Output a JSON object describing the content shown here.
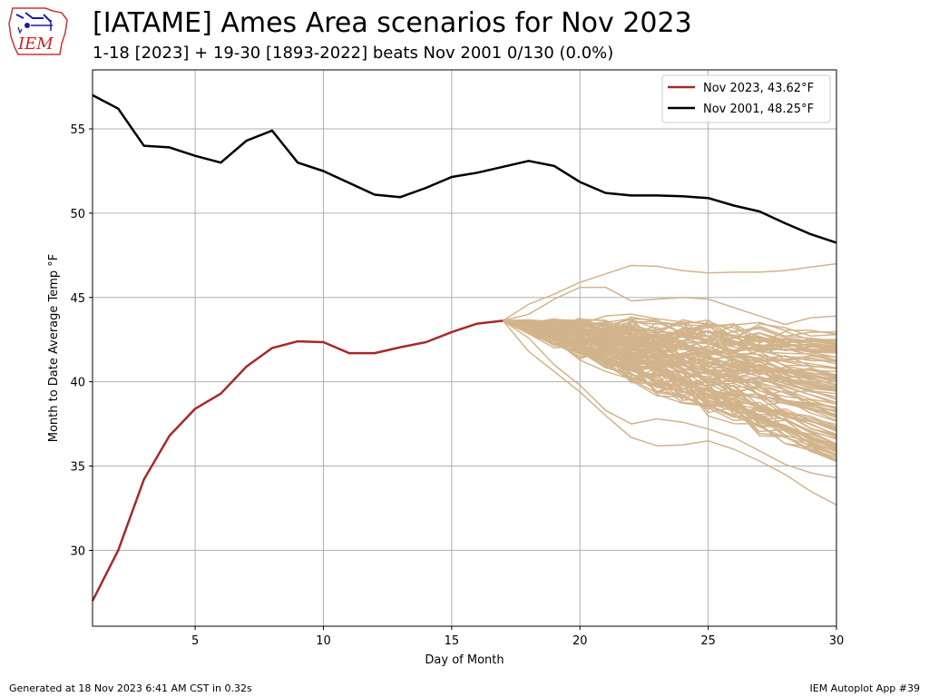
{
  "header": {
    "title": "[IATAME] Ames Area scenarios for Nov 2023",
    "subtitle": "1-18 [2023] + 19-30 [1893-2022] beats Nov 2001 0/130 (0.0%)",
    "logo_text": "IEM"
  },
  "footer": {
    "left": "Generated at 18 Nov 2023 6:41 AM CST in 0.32s",
    "right": "IEM Autoplot App #39"
  },
  "chart_data": {
    "type": "line",
    "xlabel": "Day of Month",
    "ylabel": "Month to Date Average Temp °F",
    "xlim": [
      1,
      30
    ],
    "ylim": [
      25.5,
      58.5
    ],
    "xticks": [
      5,
      10,
      15,
      20,
      25,
      30
    ],
    "yticks": [
      30,
      35,
      40,
      45,
      50,
      55
    ],
    "grid": true,
    "legend_position": "top-right",
    "colors": {
      "nov2023": "#a52a2a",
      "nov2001": "#000000",
      "scenarios": "#d2b48c",
      "grid": "#b0b0b0"
    },
    "series": [
      {
        "name": "Nov 2023, 43.62°F",
        "color": "#a52a2a",
        "x": [
          1,
          2,
          3,
          4,
          5,
          6,
          7,
          8,
          9,
          10,
          11,
          12,
          13,
          14,
          15,
          16,
          17
        ],
        "y": [
          27.0,
          30.0,
          34.2,
          36.8,
          38.4,
          39.3,
          40.9,
          42.0,
          42.4,
          42.35,
          41.7,
          41.7,
          42.05,
          42.35,
          42.95,
          43.45,
          43.62
        ]
      },
      {
        "name": "Nov 2001, 48.25°F",
        "color": "#000000",
        "x": [
          1,
          2,
          3,
          4,
          5,
          6,
          7,
          8,
          9,
          10,
          11,
          12,
          13,
          14,
          15,
          16,
          17,
          18,
          19,
          20,
          21,
          22,
          23,
          24,
          25,
          26,
          27,
          28,
          29,
          30
        ],
        "y": [
          57.0,
          56.2,
          54.0,
          53.9,
          53.4,
          53.0,
          54.3,
          54.9,
          53.0,
          52.5,
          51.8,
          51.1,
          50.95,
          51.5,
          52.15,
          52.4,
          52.75,
          53.1,
          52.8,
          51.85,
          51.2,
          51.05,
          51.05,
          51.0,
          50.9,
          50.45,
          50.1,
          49.4,
          48.75,
          48.25
        ]
      }
    ],
    "scenarios": {
      "count": 130,
      "color": "#d2b48c",
      "start_day": 17,
      "start_value": 43.62,
      "end_day": 30,
      "end_min": 32.7,
      "end_max": 47.0,
      "days_shown": [
        17,
        18,
        19,
        20,
        21,
        22,
        23,
        24,
        25,
        26,
        27,
        28,
        29,
        30
      ],
      "highlighted": [
        {
          "x": [
            17,
            18,
            19,
            20,
            21,
            22,
            23,
            24,
            25,
            26,
            27,
            28,
            29,
            30
          ],
          "y": [
            43.62,
            44.6,
            45.2,
            45.9,
            46.4,
            46.9,
            46.85,
            46.6,
            46.45,
            46.5,
            46.5,
            46.6,
            46.8,
            47.0
          ]
        },
        {
          "x": [
            17,
            18,
            19,
            20,
            21,
            22,
            23,
            24,
            25,
            26,
            27,
            28,
            29,
            30
          ],
          "y": [
            43.62,
            41.8,
            40.6,
            39.4,
            38.0,
            36.7,
            36.2,
            36.25,
            36.5,
            36.0,
            35.3,
            34.5,
            33.5,
            32.7
          ]
        },
        {
          "x": [
            17,
            18,
            19,
            20,
            21,
            22,
            23,
            24,
            25,
            26,
            27,
            28,
            29,
            30
          ],
          "y": [
            43.62,
            44.0,
            44.9,
            45.6,
            45.6,
            44.8,
            44.9,
            45.0,
            44.9,
            44.4,
            43.9,
            43.4,
            43.8,
            43.9
          ]
        },
        {
          "x": [
            17,
            18,
            19,
            20,
            21,
            22,
            23,
            24,
            25,
            26,
            27,
            28,
            29,
            30
          ],
          "y": [
            43.62,
            42.6,
            41.0,
            39.8,
            38.3,
            37.5,
            37.8,
            37.6,
            37.2,
            36.7,
            35.9,
            35.1,
            34.6,
            34.3
          ]
        }
      ]
    }
  }
}
